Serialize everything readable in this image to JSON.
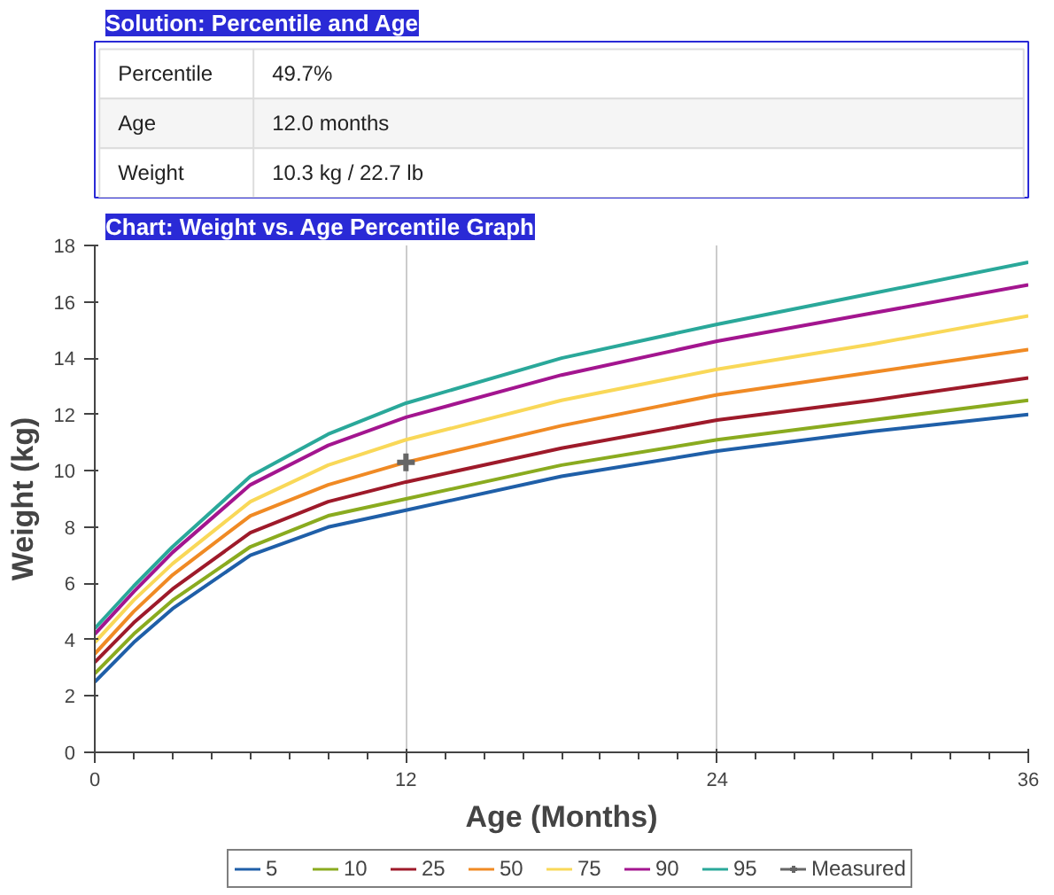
{
  "chart_data": [
    {
      "type": "other",
      "title": "Solution: Percentile and Age",
      "categories": [
        "Percentile",
        "Age",
        "Weight"
      ],
      "value_labels": [
        "49.7%",
        "12.0 months",
        "10.3 kg / 22.7 lb"
      ]
    },
    {
      "type": "line",
      "title": "Chart: Weight vs. Age Percentile Graph",
      "xlabel": "Age (Months)",
      "ylabel": "Weight (kg)",
      "x": [
        0,
        1.5,
        3,
        6,
        9,
        12,
        18,
        24,
        30,
        36
      ],
      "series": [
        {
          "name": "5",
          "color": "#1f5fa8",
          "values": [
            2.5,
            3.9,
            5.1,
            7.0,
            8.0,
            8.6,
            9.8,
            10.7,
            11.4,
            12.0
          ]
        },
        {
          "name": "10",
          "color": "#8aab1f",
          "values": [
            2.8,
            4.2,
            5.4,
            7.3,
            8.4,
            9.0,
            10.2,
            11.1,
            11.8,
            12.5
          ]
        },
        {
          "name": "25",
          "color": "#9e1a2a",
          "values": [
            3.2,
            4.6,
            5.8,
            7.8,
            8.9,
            9.6,
            10.8,
            11.8,
            12.5,
            13.3
          ]
        },
        {
          "name": "50",
          "color": "#f08a24",
          "values": [
            3.5,
            5.0,
            6.3,
            8.4,
            9.5,
            10.3,
            11.6,
            12.7,
            13.5,
            14.3
          ]
        },
        {
          "name": "75",
          "color": "#f9d858",
          "values": [
            3.9,
            5.4,
            6.7,
            8.9,
            10.2,
            11.1,
            12.5,
            13.6,
            14.5,
            15.5
          ]
        },
        {
          "name": "90",
          "color": "#a3158f",
          "values": [
            4.2,
            5.7,
            7.1,
            9.5,
            10.9,
            11.9,
            13.4,
            14.6,
            15.6,
            16.6
          ]
        },
        {
          "name": "95",
          "color": "#2aa89a",
          "values": [
            4.4,
            5.9,
            7.3,
            9.8,
            11.3,
            12.4,
            14.0,
            15.2,
            16.3,
            17.4
          ]
        },
        {
          "name": "Measured",
          "type": "scatter",
          "marker": "cross",
          "color": "#666666",
          "x": [
            12
          ],
          "values": [
            10.3
          ]
        }
      ],
      "xlim": [
        0,
        36
      ],
      "xticks": [
        0,
        12,
        24,
        36
      ],
      "ylim": [
        0,
        18
      ],
      "yticks": [
        0,
        2,
        4,
        6,
        8,
        10,
        12,
        14,
        16,
        18
      ],
      "grid": "x",
      "legend": "bottom",
      "marker": "none",
      "line_style": "solid"
    }
  ]
}
